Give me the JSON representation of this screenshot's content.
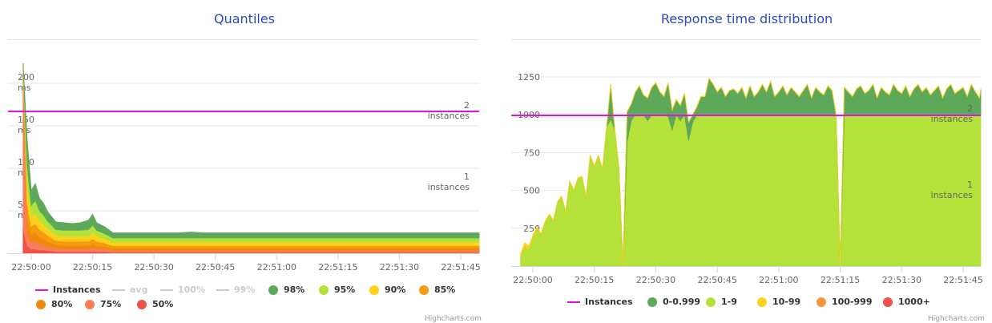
{
  "charts": [
    {
      "title": "Quantiles",
      "credits": "Highcharts.com",
      "legend": [
        {
          "label": "Instances",
          "symbol": "line",
          "color": "#e114d8",
          "visible": true
        },
        {
          "label": "avg",
          "symbol": "line",
          "color": "#cccccc",
          "visible": false
        },
        {
          "label": "100%",
          "symbol": "line",
          "color": "#cccccc",
          "visible": false
        },
        {
          "label": "99%",
          "symbol": "line",
          "color": "#cccccc",
          "visible": false
        },
        {
          "label": "98%",
          "symbol": "dot",
          "color": "#5ea85a",
          "visible": true
        },
        {
          "label": "95%",
          "symbol": "dot",
          "color": "#b5e23a",
          "visible": true
        },
        {
          "label": "90%",
          "symbol": "dot",
          "color": "#ffd11a",
          "visible": true
        },
        {
          "label": "85%",
          "symbol": "dot",
          "color": "#f59a11",
          "visible": true
        },
        {
          "label": "80%",
          "symbol": "dot",
          "color": "#ef8a0f",
          "visible": true
        },
        {
          "label": "75%",
          "symbol": "dot",
          "color": "#f77e5a",
          "visible": true
        },
        {
          "label": "50%",
          "symbol": "dot",
          "color": "#f05148",
          "visible": true
        }
      ]
    },
    {
      "title": "Response time distribution",
      "credits": "Highcharts.com",
      "legend": [
        {
          "label": "Instances",
          "symbol": "line",
          "color": "#e114d8",
          "visible": true
        },
        {
          "label": "0-0.999",
          "symbol": "dot",
          "color": "#5ea85a",
          "visible": true
        },
        {
          "label": "1-9",
          "symbol": "dot",
          "color": "#b5e23a",
          "visible": true
        },
        {
          "label": "10-99",
          "symbol": "dot",
          "color": "#ffd11a",
          "visible": true
        },
        {
          "label": "100-999",
          "symbol": "dot",
          "color": "#f7963a",
          "visible": true
        },
        {
          "label": "1000+",
          "symbol": "dot",
          "color": "#f05148",
          "visible": true
        }
      ]
    }
  ],
  "chart_data": [
    {
      "type": "area",
      "title": "Quantiles",
      "x_ticks": [
        "22:50:00",
        "22:50:15",
        "22:50:30",
        "22:50:45",
        "22:51:00",
        "22:51:15",
        "22:51:30",
        "22:51:45"
      ],
      "y_ticks": [
        {
          "value": 50,
          "label": "50",
          "unit": "ms"
        },
        {
          "value": 100,
          "label": "100",
          "unit": "ms"
        },
        {
          "value": 150,
          "label": "150",
          "unit": "ms"
        },
        {
          "value": 200,
          "label": "200",
          "unit": "ms"
        }
      ],
      "ylim": [
        0,
        200
      ],
      "x": [
        -2,
        -1,
        0,
        1,
        2,
        3,
        4,
        5,
        6,
        8,
        10,
        12,
        14,
        15,
        16,
        18,
        20,
        22,
        24,
        26,
        28,
        30,
        33,
        36,
        39,
        42,
        45,
        48,
        51,
        54,
        57,
        60,
        63,
        66,
        69,
        72,
        75,
        78,
        81,
        84,
        87,
        90,
        93,
        96,
        99,
        102,
        105,
        108,
        111
      ],
      "series": [
        {
          "name": "50%",
          "color": "#f05148",
          "values": [
            30,
            9,
            5,
            5,
            4,
            4,
            3,
            3,
            2,
            2,
            2,
            2,
            2,
            2,
            2,
            2,
            1,
            1,
            1,
            1,
            1,
            1,
            1,
            1,
            1,
            1,
            1,
            1,
            1,
            1,
            1,
            1,
            1,
            1,
            1,
            1,
            1,
            1,
            1,
            1,
            1,
            1,
            1,
            1,
            1,
            1,
            1,
            1,
            1
          ]
        },
        {
          "name": "75%",
          "color": "#f77e5a",
          "values": [
            190,
            16,
            8,
            9,
            7,
            6,
            5,
            4,
            4,
            3,
            3,
            3,
            3,
            4,
            3,
            3,
            2,
            2,
            2,
            2,
            2,
            2,
            2,
            2,
            2,
            2,
            2,
            2,
            2,
            2,
            2,
            2,
            2,
            2,
            2,
            2,
            2,
            2,
            2,
            2,
            2,
            2,
            2,
            2,
            2,
            2,
            2,
            2,
            2
          ]
        },
        {
          "name": "80%",
          "color": "#ef8a0f",
          "values": [
            195,
            17,
            9,
            10,
            8,
            7,
            6,
            5,
            4,
            4,
            4,
            4,
            4,
            5,
            4,
            3,
            3,
            3,
            3,
            3,
            3,
            3,
            3,
            3,
            3,
            3,
            3,
            3,
            3,
            3,
            3,
            3,
            3,
            3,
            3,
            3,
            3,
            3,
            3,
            3,
            3,
            3,
            3,
            3,
            3,
            3,
            3,
            3,
            3
          ]
        },
        {
          "name": "85%",
          "color": "#f59a11",
          "values": [
            198,
            18,
            10,
            11,
            9,
            8,
            7,
            6,
            5,
            5,
            5,
            5,
            5,
            6,
            5,
            4,
            3,
            3,
            3,
            3,
            3,
            3,
            3,
            3,
            3,
            3,
            3,
            3,
            3,
            3,
            3,
            3,
            3,
            3,
            3,
            3,
            3,
            3,
            3,
            3,
            3,
            3,
            3,
            3,
            3,
            3,
            3,
            3,
            3
          ]
        },
        {
          "name": "90%",
          "color": "#ffd11a",
          "values": [
            200,
            20,
            11,
            12,
            10,
            9,
            8,
            7,
            6,
            6,
            6,
            6,
            6,
            7,
            6,
            5,
            4,
            4,
            4,
            4,
            4,
            4,
            4,
            4,
            4,
            4,
            4,
            4,
            4,
            4,
            4,
            4,
            4,
            4,
            4,
            4,
            4,
            4,
            4,
            4,
            4,
            4,
            4,
            4,
            4,
            4,
            4,
            4,
            4
          ]
        },
        {
          "name": "95%",
          "color": "#b5e23a",
          "values": [
            205,
            24,
            13,
            15,
            12,
            11,
            9,
            8,
            7,
            7,
            7,
            7,
            8,
            9,
            7,
            6,
            5,
            5,
            5,
            5,
            5,
            5,
            5,
            5,
            5,
            5,
            5,
            5,
            5,
            5,
            5,
            5,
            5,
            5,
            5,
            5,
            5,
            5,
            5,
            5,
            5,
            5,
            5,
            5,
            5,
            5,
            5,
            5,
            5
          ]
        },
        {
          "name": "98%",
          "color": "#5ea85a",
          "values": [
            210,
            30,
            18,
            20,
            15,
            14,
            11,
            10,
            9,
            9,
            8,
            9,
            11,
            13,
            9,
            8,
            6,
            6,
            6,
            6,
            6,
            6,
            6,
            6,
            7,
            6,
            6,
            6,
            6,
            6,
            6,
            6,
            6,
            6,
            6,
            6,
            6,
            6,
            6,
            6,
            6,
            6,
            6,
            6,
            6,
            6,
            6,
            6,
            6
          ]
        }
      ],
      "instances": {
        "name": "Instances",
        "color": "#e114d8",
        "value": 2,
        "axis_labels": [
          {
            "value": 2,
            "label": "2",
            "unit": "instances"
          },
          {
            "value": 1,
            "label": "1",
            "unit": "instances"
          }
        ]
      }
    },
    {
      "type": "area",
      "title": "Response time distribution",
      "x_ticks": [
        "22:50:00",
        "22:50:15",
        "22:50:30",
        "22:50:45",
        "22:51:00",
        "22:51:15",
        "22:51:30",
        "22:51:45"
      ],
      "y_ticks": [
        {
          "value": 250,
          "label": "250"
        },
        {
          "value": 500,
          "label": "500"
        },
        {
          "value": 750,
          "label": "750"
        },
        {
          "value": 1000,
          "label": "1000"
        },
        {
          "value": 1250,
          "label": "1250"
        }
      ],
      "ylim": [
        0,
        1250
      ],
      "x": [
        -3,
        -2,
        -1,
        0,
        1,
        2,
        3,
        4,
        5,
        6,
        7,
        8,
        9,
        10,
        11,
        12,
        13,
        14,
        15,
        16,
        17,
        18,
        19,
        20,
        21,
        22,
        23,
        24,
        25,
        26,
        27,
        28,
        29,
        30,
        31,
        32,
        33,
        34,
        35,
        36,
        37,
        38,
        39,
        40,
        41,
        42,
        43,
        44,
        45,
        46,
        47,
        48,
        49,
        50,
        51,
        52,
        53,
        54,
        55,
        56,
        57,
        58,
        59,
        60,
        61,
        62,
        63,
        64,
        65,
        66,
        67,
        68,
        69,
        70,
        71,
        72,
        73,
        74,
        75,
        76,
        77,
        78,
        79,
        80,
        81,
        82,
        83,
        84,
        85,
        86,
        87,
        88,
        89,
        90,
        91,
        92,
        93,
        94,
        95,
        96,
        97,
        98,
        99,
        100,
        101,
        102,
        103,
        104,
        105,
        106,
        107,
        108,
        109,
        110
      ],
      "series": [
        {
          "name": "1-9",
          "color": "#b5e23a",
          "values": [
            60,
            130,
            110,
            190,
            250,
            210,
            290,
            340,
            300,
            420,
            460,
            360,
            560,
            500,
            580,
            590,
            460,
            730,
            660,
            730,
            640,
            920,
            970,
            900,
            650,
            0,
            820,
            960,
            1000,
            990,
            1000,
            960,
            1000,
            1000,
            1000,
            1000,
            990,
            900,
            1000,
            960,
            1000,
            830,
            950,
            1000,
            1000,
            1000,
            1000,
            1000,
            1000,
            1000,
            1000,
            1000,
            1000,
            1000,
            1000,
            1000,
            1000,
            1000,
            1000,
            1000,
            1000,
            1000,
            1000,
            1000,
            1000,
            1000,
            1000,
            1000,
            1000,
            1000,
            1000,
            1000,
            1000,
            1000,
            1000,
            1000,
            1000,
            1000,
            10,
            1000,
            1000,
            1000,
            1000,
            1000,
            1000,
            1000,
            1000,
            1000,
            1000,
            1000,
            1000,
            1000,
            1000,
            1000,
            1000,
            1000,
            1000,
            1000,
            1000,
            1000,
            1000,
            1000,
            1000,
            1000,
            1000,
            1000,
            1000,
            1000,
            1000,
            1000,
            1000,
            1000,
            1000,
            1000
          ]
        },
        {
          "name": "0-0.999",
          "color": "#5ea85a",
          "values": [
            0,
            0,
            0,
            0,
            0,
            0,
            0,
            0,
            0,
            0,
            0,
            0,
            0,
            0,
            0,
            0,
            0,
            0,
            0,
            0,
            0,
            0,
            230,
            0,
            0,
            0,
            200,
            110,
            150,
            200,
            130,
            150,
            180,
            210,
            150,
            120,
            220,
            130,
            100,
            100,
            140,
            120,
            50,
            50,
            120,
            120,
            240,
            200,
            150,
            180,
            120,
            160,
            170,
            140,
            180,
            110,
            190,
            120,
            150,
            200,
            150,
            220,
            120,
            150,
            190,
            130,
            180,
            150,
            120,
            160,
            200,
            110,
            180,
            150,
            130,
            190,
            160,
            0,
            0,
            180,
            150,
            120,
            170,
            190,
            140,
            160,
            200,
            110,
            180,
            150,
            130,
            200,
            160,
            140,
            190,
            120,
            170,
            200,
            150,
            180,
            130,
            160,
            190,
            110,
            170,
            200,
            140,
            160,
            180,
            120,
            200,
            150,
            110,
            170
          ]
        },
        {
          "name": "10-99",
          "color": "#ffd11a",
          "values": [
            20,
            25,
            20,
            15,
            10,
            8,
            6,
            5,
            5,
            4,
            4,
            3,
            3,
            3,
            4,
            4,
            3,
            3,
            3,
            3,
            3,
            3,
            4,
            3,
            3,
            0,
            3,
            3,
            3,
            3,
            3,
            3,
            3,
            3,
            3,
            3,
            3,
            3,
            3,
            3,
            3,
            3,
            3,
            3,
            3,
            3,
            3,
            3,
            3,
            3,
            3,
            3,
            3,
            3,
            3,
            3,
            3,
            3,
            3,
            3,
            3,
            3,
            3,
            3,
            3,
            3,
            3,
            3,
            3,
            3,
            3,
            3,
            3,
            3,
            3,
            3,
            3,
            3,
            0,
            3,
            3,
            3,
            3,
            3,
            3,
            3,
            3,
            3,
            3,
            3,
            3,
            3,
            3,
            3,
            3,
            3,
            3,
            3,
            3,
            3,
            3,
            3,
            3,
            3,
            3,
            3,
            3,
            3,
            3,
            3,
            3,
            3,
            3,
            3
          ]
        }
      ],
      "instances": {
        "name": "Instances",
        "color": "#e114d8",
        "value": 2,
        "axis_labels": [
          {
            "value": 2,
            "label": "2",
            "unit": "instances"
          },
          {
            "value": 1,
            "label": "1",
            "unit": "instances"
          }
        ]
      }
    }
  ]
}
